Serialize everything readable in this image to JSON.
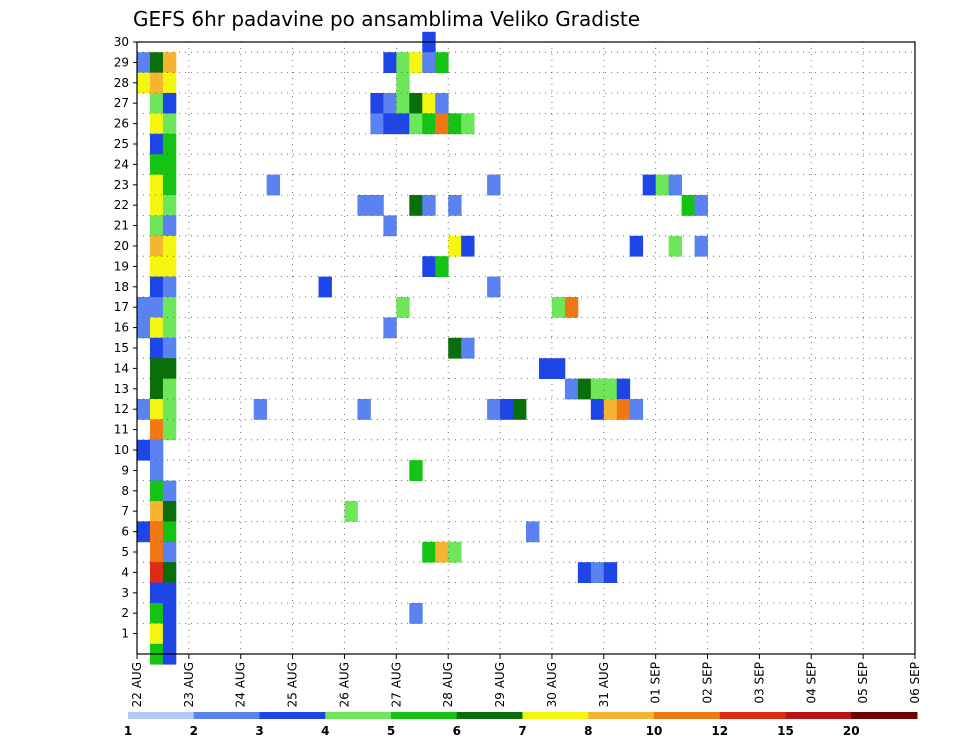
{
  "chart_data": {
    "type": "heatmap",
    "title": "GEFS 6hr padavine po ansamblima Veliko Gradiste",
    "xlabel": "",
    "ylabel": "",
    "x_tick_labels": [
      "22 AUG",
      "23 AUG",
      "24 AUG",
      "25 AUG",
      "26 AUG",
      "27 AUG",
      "28 AUG",
      "29 AUG",
      "30 AUG",
      "31 AUG",
      "01 SEP",
      "02 SEP",
      "03 SEP",
      "04 SEP",
      "05 SEP",
      "06 SEP"
    ],
    "y_tick_labels": [
      "1",
      "2",
      "3",
      "4",
      "5",
      "6",
      "7",
      "8",
      "9",
      "10",
      "11",
      "12",
      "13",
      "14",
      "15",
      "16",
      "17",
      "18",
      "19",
      "20",
      "21",
      "22",
      "23",
      "24",
      "25",
      "26",
      "27",
      "28",
      "29",
      "30"
    ],
    "time_step_hours": 6,
    "grid": "dotted",
    "colorbar": {
      "labels": [
        "1",
        "2",
        "3",
        "4",
        "5",
        "6",
        "7",
        "8",
        "10",
        "12",
        "15",
        "20"
      ],
      "colors": [
        "#b4c8f5",
        "#5a82f0",
        "#1e46e6",
        "#6ee65a",
        "#14c314",
        "#0a6e0a",
        "#f5f514",
        "#f5b432",
        "#f07814",
        "#dc2d14",
        "#b41414",
        "#6e0000"
      ]
    },
    "cell_unit": "column = 6-hour step index from 22 AUG 00Z; row = ensemble member; value = colour bin index",
    "cells": [
      [
        0,
        28,
        1
      ],
      [
        1,
        28,
        5
      ],
      [
        2,
        28,
        7
      ],
      [
        0,
        27,
        6
      ],
      [
        1,
        27,
        7
      ],
      [
        2,
        27,
        6
      ],
      [
        1,
        26,
        3
      ],
      [
        2,
        26,
        2
      ],
      [
        1,
        25,
        6
      ],
      [
        2,
        25,
        3
      ],
      [
        1,
        24,
        2
      ],
      [
        2,
        24,
        4
      ],
      [
        1,
        23,
        4
      ],
      [
        2,
        23,
        4
      ],
      [
        1,
        22,
        6
      ],
      [
        2,
        22,
        4
      ],
      [
        1,
        21,
        6
      ],
      [
        2,
        21,
        3
      ],
      [
        1,
        20,
        3
      ],
      [
        2,
        20,
        1
      ],
      [
        1,
        19,
        7
      ],
      [
        2,
        19,
        6
      ],
      [
        1,
        18,
        6
      ],
      [
        2,
        18,
        6
      ],
      [
        1,
        17,
        2
      ],
      [
        2,
        17,
        1
      ],
      [
        0,
        16,
        1
      ],
      [
        1,
        16,
        1
      ],
      [
        2,
        16,
        3
      ],
      [
        0,
        15,
        1
      ],
      [
        1,
        15,
        6
      ],
      [
        2,
        15,
        3
      ],
      [
        1,
        14,
        2
      ],
      [
        2,
        14,
        1
      ],
      [
        1,
        13,
        5
      ],
      [
        2,
        13,
        5
      ],
      [
        1,
        12,
        5
      ],
      [
        2,
        12,
        3
      ],
      [
        1,
        11,
        6
      ],
      [
        2,
        11,
        3
      ],
      [
        0,
        11,
        1
      ],
      [
        1,
        11,
        6
      ],
      [
        2,
        11,
        3
      ],
      [
        1,
        10,
        8
      ],
      [
        2,
        10,
        3
      ],
      [
        0,
        9,
        2
      ],
      [
        1,
        9,
        1
      ],
      [
        1,
        8,
        1
      ],
      [
        1,
        7,
        4
      ],
      [
        2,
        7,
        1
      ],
      [
        1,
        6,
        7
      ],
      [
        2,
        6,
        5
      ],
      [
        0,
        5,
        2
      ],
      [
        1,
        5,
        8
      ],
      [
        2,
        5,
        4
      ],
      [
        1,
        4,
        8
      ],
      [
        2,
        4,
        1
      ],
      [
        1,
        3,
        9
      ],
      [
        2,
        3,
        5
      ],
      [
        1,
        2,
        2
      ],
      [
        2,
        2,
        2
      ],
      [
        1,
        1,
        4
      ],
      [
        2,
        1,
        2
      ],
      [
        1,
        0,
        6
      ],
      [
        2,
        0,
        2
      ],
      [
        1,
        -1,
        4
      ],
      [
        2,
        -1,
        2
      ],
      [
        22,
        29,
        2
      ],
      [
        19,
        28,
        2
      ],
      [
        20,
        28,
        3
      ],
      [
        21,
        28,
        6
      ],
      [
        22,
        28,
        1
      ],
      [
        23,
        28,
        4
      ],
      [
        20,
        27,
        3
      ],
      [
        18,
        26,
        2
      ],
      [
        19,
        26,
        1
      ],
      [
        20,
        26,
        3
      ],
      [
        21,
        26,
        5
      ],
      [
        22,
        26,
        6
      ],
      [
        23,
        26,
        1
      ],
      [
        18,
        25,
        1
      ],
      [
        19,
        25,
        2
      ],
      [
        20,
        25,
        2
      ],
      [
        21,
        25,
        3
      ],
      [
        22,
        25,
        4
      ],
      [
        23,
        25,
        8
      ],
      [
        24,
        25,
        4
      ],
      [
        25,
        25,
        3
      ],
      [
        10,
        22,
        1
      ],
      [
        27,
        22,
        1
      ],
      [
        39,
        22,
        2
      ],
      [
        40,
        22,
        3
      ],
      [
        41,
        22,
        1
      ],
      [
        17,
        21,
        1
      ],
      [
        18,
        21,
        1
      ],
      [
        21,
        21,
        5
      ],
      [
        22,
        21,
        1
      ],
      [
        24,
        21,
        1
      ],
      [
        42,
        21,
        4
      ],
      [
        43,
        21,
        1
      ],
      [
        19,
        20,
        1
      ],
      [
        24,
        19,
        6
      ],
      [
        25,
        19,
        2
      ],
      [
        38,
        19,
        2
      ],
      [
        41,
        19,
        3
      ],
      [
        43,
        19,
        1
      ],
      [
        22,
        18,
        2
      ],
      [
        23,
        18,
        4
      ],
      [
        14,
        17,
        2
      ],
      [
        27,
        17,
        1
      ],
      [
        20,
        16,
        3
      ],
      [
        32,
        16,
        3
      ],
      [
        33,
        16,
        8
      ],
      [
        19,
        15,
        1
      ],
      [
        24,
        14,
        5
      ],
      [
        25,
        14,
        1
      ],
      [
        31,
        13,
        2
      ],
      [
        32,
        13,
        2
      ],
      [
        33,
        12,
        1
      ],
      [
        34,
        12,
        5
      ],
      [
        35,
        12,
        3
      ],
      [
        36,
        12,
        3
      ],
      [
        37,
        12,
        2
      ],
      [
        9,
        11,
        1
      ],
      [
        17,
        11,
        1
      ],
      [
        27,
        11,
        1
      ],
      [
        28,
        11,
        2
      ],
      [
        29,
        11,
        5
      ],
      [
        35,
        11,
        2
      ],
      [
        36,
        11,
        7
      ],
      [
        37,
        11,
        8
      ],
      [
        38,
        11,
        1
      ],
      [
        21,
        8,
        4
      ],
      [
        16,
        6,
        3
      ],
      [
        30,
        5,
        1
      ],
      [
        22,
        4,
        4
      ],
      [
        23,
        4,
        7
      ],
      [
        24,
        4,
        3
      ],
      [
        34,
        3,
        2
      ],
      [
        35,
        3,
        1
      ],
      [
        36,
        3,
        2
      ],
      [
        21,
        1,
        1
      ]
    ]
  }
}
